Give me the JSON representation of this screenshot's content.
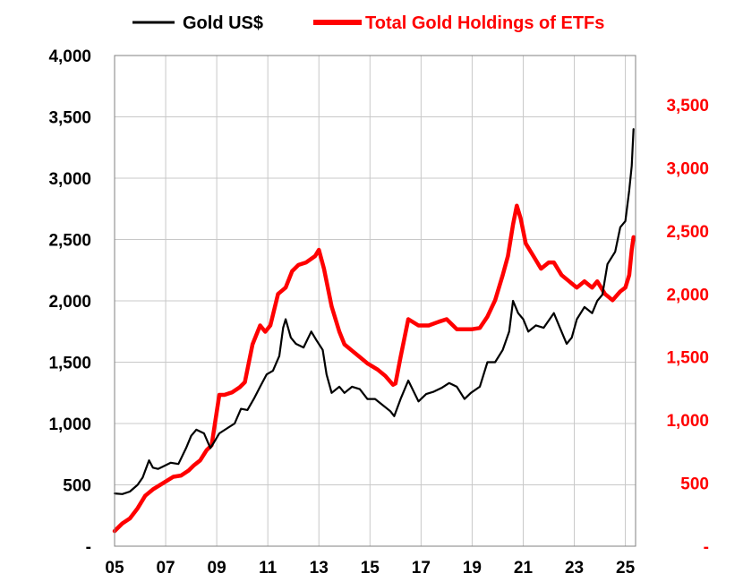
{
  "chart_data": {
    "type": "line",
    "legend": {
      "placement": "top",
      "entries": [
        {
          "label": "Gold US$",
          "color": "#000000"
        },
        {
          "label": "Total Gold Holdings of ETFs",
          "color": "#ff0000"
        }
      ]
    },
    "x_axis": {
      "range": [
        2005,
        2025.4
      ],
      "ticks": [
        {
          "value": 2005,
          "label": "05"
        },
        {
          "value": 2007,
          "label": "07"
        },
        {
          "value": 2009,
          "label": "09"
        },
        {
          "value": 2011,
          "label": "11"
        },
        {
          "value": 2013,
          "label": "13"
        },
        {
          "value": 2015,
          "label": "15"
        },
        {
          "value": 2017,
          "label": "17"
        },
        {
          "value": 2019,
          "label": "19"
        },
        {
          "value": 2021,
          "label": "21"
        },
        {
          "value": 2023,
          "label": "23"
        },
        {
          "value": 2025,
          "label": "25"
        }
      ]
    },
    "y_left": {
      "range": [
        0,
        4000
      ],
      "color": "#000000",
      "ticks": [
        {
          "value": 0,
          "label": "-"
        },
        {
          "value": 500,
          "label": "500"
        },
        {
          "value": 1000,
          "label": "1,000"
        },
        {
          "value": 1500,
          "label": "1,500"
        },
        {
          "value": 2000,
          "label": "2,000"
        },
        {
          "value": 2500,
          "label": "2,500"
        },
        {
          "value": 3000,
          "label": "3,000"
        },
        {
          "value": 3500,
          "label": "3,500"
        },
        {
          "value": 4000,
          "label": "4,000"
        }
      ]
    },
    "y_right": {
      "range": [
        0,
        3500
      ],
      "color": "#ff0000",
      "ticks": [
        {
          "value": 0,
          "label": "-"
        },
        {
          "value": 500,
          "label": "500"
        },
        {
          "value": 1000,
          "label": "1,000"
        },
        {
          "value": 1500,
          "label": "1,500"
        },
        {
          "value": 2000,
          "label": "2,000"
        },
        {
          "value": 2500,
          "label": "2,500"
        },
        {
          "value": 3000,
          "label": "3,000"
        },
        {
          "value": 3500,
          "label": "3,500"
        }
      ]
    },
    "grid": {
      "vertical": true,
      "horizontal": true
    },
    "series": [
      {
        "name": "Gold US$",
        "axis": "left",
        "color": "#000000",
        "x": [
          2005.0,
          2005.3,
          2005.6,
          2005.9,
          2006.1,
          2006.35,
          2006.5,
          2006.7,
          2006.9,
          2007.2,
          2007.5,
          2007.8,
          2008.0,
          2008.2,
          2008.5,
          2008.75,
          2008.9,
          2009.1,
          2009.4,
          2009.7,
          2009.95,
          2010.2,
          2010.45,
          2010.7,
          2010.95,
          2011.2,
          2011.45,
          2011.6,
          2011.7,
          2011.9,
          2012.1,
          2012.4,
          2012.7,
          2012.9,
          2013.15,
          2013.3,
          2013.5,
          2013.8,
          2014.0,
          2014.3,
          2014.6,
          2014.9,
          2015.2,
          2015.5,
          2015.8,
          2015.95,
          2016.2,
          2016.5,
          2016.9,
          2017.2,
          2017.5,
          2017.8,
          2018.1,
          2018.4,
          2018.7,
          2018.95,
          2019.3,
          2019.6,
          2019.9,
          2020.2,
          2020.45,
          2020.6,
          2020.8,
          2021.0,
          2021.2,
          2021.5,
          2021.8,
          2022.2,
          2022.4,
          2022.7,
          2022.9,
          2023.1,
          2023.4,
          2023.7,
          2023.9,
          2024.1,
          2024.3,
          2024.6,
          2024.8,
          2025.0,
          2025.15,
          2025.25,
          2025.32
        ],
        "y": [
          430,
          425,
          445,
          500,
          560,
          700,
          640,
          630,
          650,
          680,
          670,
          800,
          900,
          950,
          920,
          800,
          850,
          920,
          960,
          1000,
          1120,
          1110,
          1200,
          1300,
          1400,
          1430,
          1550,
          1780,
          1850,
          1700,
          1650,
          1620,
          1750,
          1680,
          1600,
          1400,
          1250,
          1300,
          1250,
          1300,
          1280,
          1200,
          1200,
          1150,
          1100,
          1060,
          1200,
          1350,
          1180,
          1240,
          1260,
          1290,
          1330,
          1300,
          1200,
          1250,
          1300,
          1500,
          1500,
          1600,
          1750,
          2000,
          1900,
          1850,
          1750,
          1800,
          1780,
          1900,
          1800,
          1650,
          1700,
          1850,
          1950,
          1900,
          2000,
          2050,
          2300,
          2400,
          2600,
          2650,
          2900,
          3100,
          3400
        ]
      },
      {
        "name": "Total Gold Holdings of ETFs",
        "axis": "right",
        "color": "#ff0000",
        "x": [
          2005.0,
          2005.3,
          2005.6,
          2005.9,
          2006.2,
          2006.5,
          2006.9,
          2007.3,
          2007.6,
          2007.9,
          2008.1,
          2008.35,
          2008.6,
          2008.8,
          2009.1,
          2009.3,
          2009.6,
          2009.9,
          2010.1,
          2010.4,
          2010.7,
          2010.9,
          2011.1,
          2011.4,
          2011.7,
          2011.95,
          2012.2,
          2012.5,
          2012.85,
          2013.0,
          2013.2,
          2013.5,
          2013.8,
          2014.0,
          2014.3,
          2014.6,
          2014.9,
          2015.3,
          2015.6,
          2015.9,
          2016.0,
          2016.2,
          2016.5,
          2016.9,
          2017.3,
          2017.7,
          2018.0,
          2018.4,
          2018.7,
          2019.0,
          2019.3,
          2019.6,
          2019.9,
          2020.2,
          2020.4,
          2020.6,
          2020.75,
          2020.9,
          2021.1,
          2021.4,
          2021.7,
          2022.0,
          2022.2,
          2022.5,
          2022.8,
          2023.1,
          2023.4,
          2023.7,
          2023.9,
          2024.2,
          2024.5,
          2024.8,
          2025.0,
          2025.15,
          2025.25,
          2025.32
        ],
        "y": [
          120,
          180,
          220,
          300,
          400,
          450,
          500,
          550,
          560,
          600,
          640,
          680,
          760,
          800,
          1200,
          1200,
          1220,
          1260,
          1300,
          1600,
          1750,
          1700,
          1750,
          2000,
          2050,
          2180,
          2230,
          2250,
          2300,
          2350,
          2200,
          1900,
          1700,
          1600,
          1550,
          1500,
          1450,
          1400,
          1350,
          1280,
          1290,
          1500,
          1800,
          1750,
          1750,
          1780,
          1800,
          1720,
          1720,
          1720,
          1730,
          1820,
          1950,
          2150,
          2300,
          2550,
          2700,
          2600,
          2400,
          2300,
          2200,
          2250,
          2250,
          2150,
          2100,
          2050,
          2100,
          2050,
          2100,
          2000,
          1950,
          2020,
          2050,
          2150,
          2350,
          2450
        ]
      }
    ]
  }
}
